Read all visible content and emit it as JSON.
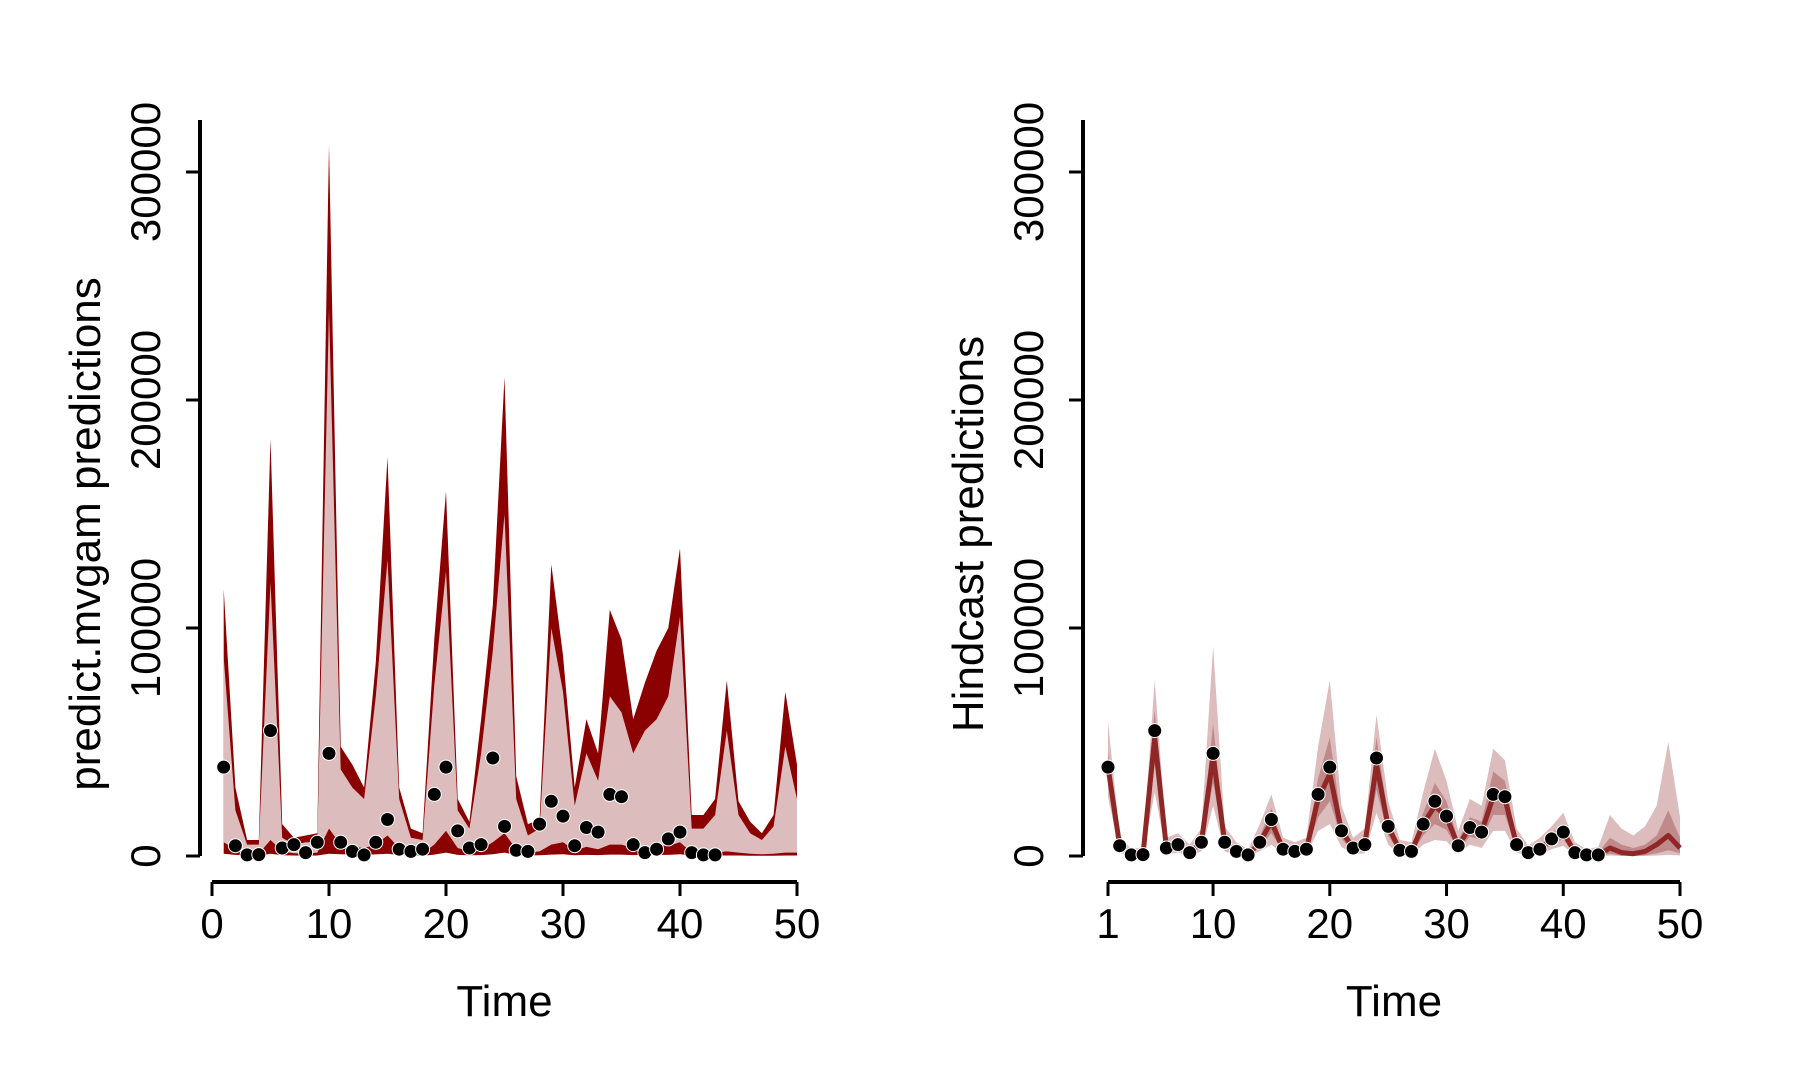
{
  "chart_data": [
    {
      "type": "area",
      "xlabel": "Time",
      "ylabel": "predict.mvgam predictions",
      "xlim": [
        0,
        50
      ],
      "ylim": [
        0,
        300000
      ],
      "x_ticks": [
        "0",
        "10",
        "20",
        "30",
        "40",
        "50"
      ],
      "y_ticks": [
        "0",
        "100000",
        "200000",
        "300000"
      ],
      "colors": {
        "band_outer": "#8b0000",
        "band_inner": "#dcbcbc",
        "points": "#000000"
      },
      "x": [
        1,
        2,
        3,
        4,
        5,
        6,
        7,
        8,
        9,
        10,
        11,
        12,
        13,
        14,
        15,
        16,
        17,
        18,
        19,
        20,
        21,
        22,
        23,
        24,
        25,
        26,
        27,
        28,
        29,
        30,
        31,
        32,
        33,
        34,
        35,
        36,
        37,
        38,
        39,
        40,
        41,
        42,
        43,
        44,
        45,
        46,
        47,
        48,
        49,
        50
      ],
      "outer_upper": [
        117000,
        30000,
        7000,
        7000,
        183000,
        14000,
        8000,
        9000,
        10000,
        312000,
        48000,
        40000,
        30000,
        85000,
        175000,
        30000,
        12000,
        10000,
        95000,
        160000,
        25000,
        15000,
        60000,
        110000,
        210000,
        35000,
        14000,
        16000,
        128000,
        88000,
        30000,
        60000,
        45000,
        108000,
        95000,
        60000,
        76000,
        90000,
        100000,
        135000,
        18000,
        18000,
        25000,
        77000,
        24000,
        15000,
        10000,
        18000,
        72000,
        40000
      ],
      "inner_upper": [
        87000,
        20000,
        5000,
        5000,
        120000,
        8000,
        5000,
        6000,
        6000,
        240000,
        38000,
        30000,
        25000,
        70000,
        130000,
        25000,
        8000,
        7000,
        75000,
        125000,
        20000,
        12000,
        45000,
        90000,
        150000,
        25000,
        9000,
        12000,
        100000,
        72000,
        22000,
        45000,
        33000,
        70000,
        63000,
        45000,
        55000,
        60000,
        70000,
        105000,
        12000,
        12000,
        18000,
        55000,
        18000,
        10000,
        7000,
        13000,
        48000,
        25000
      ],
      "inner_lower": [
        6000,
        3000,
        1500,
        1000,
        7000,
        2000,
        1200,
        1000,
        1500,
        12000,
        5000,
        4000,
        3500,
        5000,
        9000,
        3500,
        1500,
        1200,
        5000,
        11000,
        3500,
        2000,
        3000,
        6000,
        10000,
        3000,
        1500,
        2000,
        5000,
        6000,
        2500,
        4000,
        3000,
        5000,
        5000,
        3500,
        4000,
        4500,
        4500,
        6000,
        1500,
        1000,
        1500,
        2000,
        1500,
        1000,
        800,
        1000,
        1500,
        1500
      ],
      "outer_lower": [
        1000,
        500,
        200,
        100,
        1000,
        300,
        200,
        100,
        200,
        1000,
        800,
        600,
        500,
        700,
        1000,
        500,
        200,
        100,
        600,
        1500,
        500,
        300,
        400,
        800,
        1500,
        400,
        200,
        300,
        600,
        800,
        300,
        500,
        400,
        600,
        600,
        400,
        500,
        500,
        500,
        800,
        200,
        100,
        200,
        200,
        200,
        100,
        100,
        100,
        200,
        200
      ],
      "observed_x": [
        1,
        2,
        3,
        4,
        5,
        6,
        7,
        8,
        9,
        10,
        11,
        12,
        13,
        14,
        15,
        16,
        17,
        18,
        19,
        20,
        21,
        22,
        23,
        24,
        25,
        26,
        27,
        28,
        29,
        30,
        31,
        32,
        33,
        34,
        35,
        36,
        37,
        38,
        39,
        40,
        41,
        42,
        43
      ],
      "observed_y": [
        39000,
        4500,
        500,
        600,
        55000,
        3500,
        5000,
        1500,
        6000,
        45000,
        6000,
        2000,
        500,
        6000,
        16000,
        3000,
        2000,
        3000,
        27000,
        39000,
        11000,
        3500,
        5000,
        43000,
        13000,
        2500,
        2000,
        14000,
        24000,
        17500,
        4500,
        12500,
        10500,
        27000,
        26000,
        5000,
        1500,
        3000,
        7500,
        10500,
        1500,
        500,
        500
      ]
    },
    {
      "type": "area",
      "xlabel": "Time",
      "ylabel": "Hindcast predictions",
      "xlim": [
        1,
        50
      ],
      "ylim": [
        0,
        300000
      ],
      "x_ticks": [
        "1",
        "10",
        "20",
        "30",
        "40",
        "50"
      ],
      "y_ticks": [
        "0",
        "100000",
        "200000",
        "300000"
      ],
      "colors": {
        "band_outer": "#dcbcbc",
        "band_mid": "#c08a8a",
        "median_line": "#8f2727",
        "points": "#000000"
      },
      "x": [
        1,
        2,
        3,
        4,
        5,
        6,
        7,
        8,
        9,
        10,
        11,
        12,
        13,
        14,
        15,
        16,
        17,
        18,
        19,
        20,
        21,
        22,
        23,
        24,
        25,
        26,
        27,
        28,
        29,
        30,
        31,
        32,
        33,
        34,
        35,
        36,
        37,
        38,
        39,
        40,
        41,
        42,
        43,
        44,
        45,
        46,
        47,
        48,
        49,
        50
      ],
      "median": [
        39000,
        4500,
        500,
        600,
        52000,
        3500,
        5000,
        1500,
        6000,
        44000,
        6000,
        2000,
        500,
        6000,
        15000,
        3000,
        2000,
        3000,
        25000,
        36000,
        11000,
        3500,
        5000,
        40000,
        13000,
        2500,
        2000,
        14000,
        22000,
        17000,
        4500,
        12500,
        10500,
        26000,
        25000,
        5000,
        1500,
        3000,
        7500,
        10500,
        1500,
        500,
        500,
        3500,
        1500,
        1000,
        2000,
        5000,
        9000,
        3500
      ],
      "mid_upper": [
        46000,
        6000,
        1200,
        1500,
        64000,
        5000,
        7000,
        2500,
        8000,
        58000,
        8000,
        3200,
        1200,
        8500,
        21000,
        4500,
        3200,
        4500,
        34000,
        52000,
        15000,
        5000,
        7500,
        52000,
        17000,
        4000,
        3200,
        19000,
        32000,
        24000,
        7000,
        17000,
        15000,
        37000,
        33000,
        7500,
        2500,
        4500,
        10000,
        14000,
        3000,
        1200,
        1500,
        8000,
        5000,
        3500,
        5000,
        9000,
        20000,
        8000
      ],
      "mid_lower": [
        33000,
        3000,
        100,
        100,
        40000,
        2000,
        3200,
        700,
        4200,
        32000,
        4000,
        1000,
        100,
        4000,
        10000,
        1800,
        1000,
        1800,
        17000,
        24000,
        7500,
        2000,
        3000,
        29000,
        9000,
        1200,
        900,
        9000,
        14000,
        11500,
        2500,
        8500,
        7000,
        18000,
        18000,
        3000,
        700,
        1800,
        5000,
        7500,
        500,
        100,
        100,
        1000,
        200,
        100,
        300,
        1200,
        2500,
        1200
      ],
      "outer_upper": [
        59000,
        9000,
        3000,
        4000,
        77000,
        8000,
        10000,
        5000,
        12000,
        92000,
        13000,
        6000,
        3000,
        14000,
        27000,
        8000,
        6000,
        8000,
        48000,
        77000,
        22000,
        8000,
        12000,
        62000,
        24000,
        7000,
        6000,
        28000,
        47000,
        33000,
        11000,
        25000,
        22000,
        47000,
        42000,
        12000,
        4500,
        8000,
        13000,
        19000,
        6000,
        3000,
        4000,
        18000,
        12000,
        9000,
        13000,
        22000,
        50000,
        17000
      ],
      "outer_lower": [
        26000,
        1500,
        0,
        0,
        28000,
        700,
        1500,
        100,
        2000,
        22000,
        2000,
        200,
        0,
        2000,
        5000,
        700,
        200,
        600,
        11000,
        14000,
        4000,
        800,
        1200,
        19000,
        5000,
        400,
        200,
        5000,
        7000,
        6500,
        1000,
        5000,
        3500,
        11000,
        11000,
        1500,
        200,
        600,
        3000,
        4500,
        100,
        0,
        0,
        200,
        0,
        0,
        0,
        200,
        500,
        200
      ],
      "observed_x": [
        1,
        2,
        3,
        4,
        5,
        6,
        7,
        8,
        9,
        10,
        11,
        12,
        13,
        14,
        15,
        16,
        17,
        18,
        19,
        20,
        21,
        22,
        23,
        24,
        25,
        26,
        27,
        28,
        29,
        30,
        31,
        32,
        33,
        34,
        35,
        36,
        37,
        38,
        39,
        40,
        41,
        42,
        43
      ],
      "observed_y": [
        39000,
        4500,
        500,
        600,
        55000,
        3500,
        5000,
        1500,
        6000,
        45000,
        6000,
        2000,
        500,
        6000,
        16000,
        3000,
        2000,
        3000,
        27000,
        39000,
        11000,
        3500,
        5000,
        43000,
        13000,
        2500,
        2000,
        14000,
        24000,
        17500,
        4500,
        12500,
        10500,
        27000,
        26000,
        5000,
        1500,
        3000,
        7500,
        10500,
        1500,
        500,
        500
      ]
    }
  ]
}
